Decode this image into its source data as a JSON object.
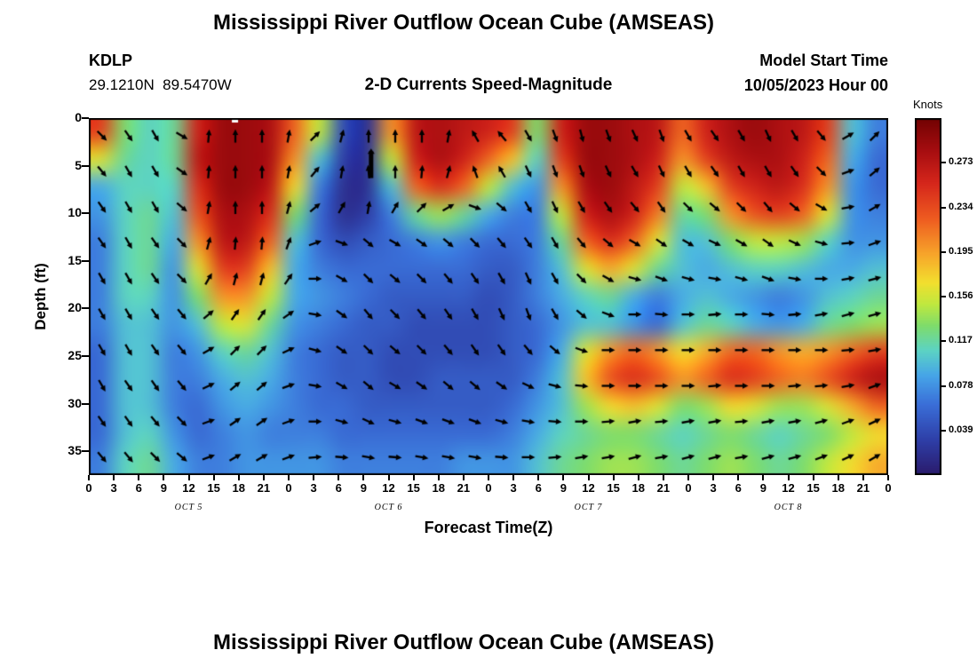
{
  "page": {
    "title": "Mississippi River Outflow Ocean Cube (AMSEAS)",
    "bottom_title": "Mississippi River Outflow Ocean Cube (AMSEAS)"
  },
  "header": {
    "station": "KDLP",
    "coordinates": "29.1210N  89.5470W",
    "subtitle": "2-D Currents Speed-Magnitude",
    "model_start_label": "Model Start Time",
    "model_start_value": "10/05/2023 Hour 00"
  },
  "chart_data": {
    "type": "heatmap",
    "title": "2-D Currents Speed-Magnitude",
    "xlabel": "Forecast Time(Z)",
    "ylabel": "Depth (ft)",
    "colorbar_label": "Knots",
    "x_hours_range": [
      0,
      96
    ],
    "x_tick_step_hours": 3,
    "x_tick_labels": [
      "0",
      "3",
      "6",
      "9",
      "12",
      "15",
      "18",
      "21",
      "0",
      "3",
      "6",
      "9",
      "12",
      "15",
      "18",
      "21",
      "0",
      "3",
      "6",
      "9",
      "12",
      "15",
      "18",
      "21",
      "0",
      "3",
      "6",
      "9",
      "12",
      "15",
      "18",
      "21",
      "0"
    ],
    "day_labels": [
      "OCT 5",
      "OCT 6",
      "OCT 7",
      "OCT 8"
    ],
    "day_center_hours": [
      12,
      36,
      60,
      84
    ],
    "y_ticks_ft": [
      0,
      5,
      10,
      15,
      20,
      25,
      30,
      35
    ],
    "depth_range_ft": [
      0,
      37.5
    ],
    "value_range_knots": [
      0,
      0.312
    ],
    "colorbar_ticks": [
      0.273,
      0.234,
      0.195,
      0.156,
      0.117,
      0.078,
      0.039
    ],
    "colormap_stops": [
      [
        0.0,
        "#2a1a6a"
      ],
      [
        0.1,
        "#2e3fa8"
      ],
      [
        0.2,
        "#3a6fd8"
      ],
      [
        0.28,
        "#46a5e8"
      ],
      [
        0.35,
        "#5cd3c4"
      ],
      [
        0.42,
        "#7fdc6a"
      ],
      [
        0.48,
        "#c0e83f"
      ],
      [
        0.54,
        "#f2df2e"
      ],
      [
        0.62,
        "#f7a52a"
      ],
      [
        0.72,
        "#ee5b20"
      ],
      [
        0.82,
        "#d5261b"
      ],
      [
        0.91,
        "#a60d10"
      ],
      [
        1.0,
        "#720202"
      ]
    ],
    "grid": {
      "depths_ft": [
        0,
        3,
        6,
        9,
        12,
        15,
        18,
        21,
        24,
        27,
        30,
        33,
        36
      ],
      "time_start_hours": 0,
      "time_step_hours": 3,
      "speed_knots": [
        [
          0.24,
          0.13,
          0.11,
          0.12,
          0.26,
          0.29,
          0.29,
          0.28,
          0.22,
          0.15,
          0.04,
          0.02,
          0.2,
          0.27,
          0.28,
          0.27,
          0.26,
          0.24,
          0.13,
          0.26,
          0.29,
          0.29,
          0.28,
          0.27,
          0.22,
          0.26,
          0.28,
          0.29,
          0.28,
          0.27,
          0.24,
          0.1,
          0.07
        ],
        [
          0.16,
          0.12,
          0.11,
          0.12,
          0.27,
          0.29,
          0.29,
          0.28,
          0.2,
          0.1,
          0.03,
          0.02,
          0.15,
          0.26,
          0.28,
          0.26,
          0.22,
          0.18,
          0.11,
          0.24,
          0.29,
          0.29,
          0.28,
          0.26,
          0.2,
          0.24,
          0.27,
          0.28,
          0.28,
          0.26,
          0.22,
          0.09,
          0.06
        ],
        [
          0.09,
          0.11,
          0.11,
          0.11,
          0.25,
          0.29,
          0.29,
          0.27,
          0.17,
          0.07,
          0.02,
          0.02,
          0.1,
          0.22,
          0.25,
          0.22,
          0.15,
          0.1,
          0.08,
          0.2,
          0.28,
          0.29,
          0.27,
          0.24,
          0.15,
          0.18,
          0.24,
          0.26,
          0.27,
          0.25,
          0.2,
          0.08,
          0.06
        ],
        [
          0.08,
          0.11,
          0.12,
          0.1,
          0.23,
          0.28,
          0.28,
          0.25,
          0.13,
          0.06,
          0.02,
          0.03,
          0.07,
          0.12,
          0.14,
          0.12,
          0.09,
          0.07,
          0.07,
          0.15,
          0.26,
          0.28,
          0.26,
          0.21,
          0.12,
          0.13,
          0.2,
          0.23,
          0.24,
          0.22,
          0.16,
          0.08,
          0.07
        ],
        [
          0.07,
          0.11,
          0.12,
          0.09,
          0.2,
          0.27,
          0.27,
          0.22,
          0.1,
          0.06,
          0.04,
          0.05,
          0.06,
          0.07,
          0.08,
          0.07,
          0.06,
          0.06,
          0.07,
          0.12,
          0.22,
          0.25,
          0.22,
          0.16,
          0.1,
          0.1,
          0.13,
          0.15,
          0.15,
          0.14,
          0.11,
          0.08,
          0.08
        ],
        [
          0.07,
          0.11,
          0.12,
          0.08,
          0.16,
          0.24,
          0.24,
          0.18,
          0.09,
          0.07,
          0.06,
          0.06,
          0.06,
          0.06,
          0.06,
          0.06,
          0.05,
          0.05,
          0.07,
          0.1,
          0.16,
          0.19,
          0.16,
          0.12,
          0.1,
          0.09,
          0.1,
          0.11,
          0.11,
          0.1,
          0.09,
          0.09,
          0.1
        ],
        [
          0.07,
          0.11,
          0.11,
          0.08,
          0.13,
          0.2,
          0.2,
          0.15,
          0.09,
          0.08,
          0.07,
          0.06,
          0.05,
          0.05,
          0.05,
          0.05,
          0.04,
          0.05,
          0.07,
          0.09,
          0.11,
          0.12,
          0.09,
          0.07,
          0.09,
          0.1,
          0.09,
          0.08,
          0.07,
          0.08,
          0.1,
          0.11,
          0.12
        ],
        [
          0.07,
          0.1,
          0.1,
          0.08,
          0.1,
          0.15,
          0.16,
          0.12,
          0.08,
          0.07,
          0.06,
          0.05,
          0.05,
          0.04,
          0.04,
          0.04,
          0.04,
          0.05,
          0.06,
          0.08,
          0.1,
          0.1,
          0.08,
          0.06,
          0.1,
          0.12,
          0.11,
          0.09,
          0.08,
          0.09,
          0.12,
          0.13,
          0.14
        ],
        [
          0.06,
          0.1,
          0.1,
          0.07,
          0.08,
          0.11,
          0.12,
          0.1,
          0.07,
          0.06,
          0.05,
          0.05,
          0.04,
          0.04,
          0.04,
          0.04,
          0.04,
          0.05,
          0.06,
          0.09,
          0.16,
          0.2,
          0.22,
          0.2,
          0.17,
          0.19,
          0.22,
          0.22,
          0.2,
          0.19,
          0.2,
          0.22,
          0.24
        ],
        [
          0.06,
          0.1,
          0.1,
          0.07,
          0.07,
          0.09,
          0.1,
          0.09,
          0.07,
          0.06,
          0.05,
          0.05,
          0.04,
          0.04,
          0.05,
          0.05,
          0.05,
          0.05,
          0.07,
          0.1,
          0.18,
          0.23,
          0.25,
          0.23,
          0.2,
          0.22,
          0.25,
          0.24,
          0.22,
          0.21,
          0.23,
          0.26,
          0.28
        ],
        [
          0.06,
          0.1,
          0.1,
          0.07,
          0.06,
          0.08,
          0.09,
          0.08,
          0.07,
          0.06,
          0.06,
          0.05,
          0.05,
          0.05,
          0.05,
          0.05,
          0.05,
          0.06,
          0.08,
          0.1,
          0.14,
          0.17,
          0.18,
          0.16,
          0.13,
          0.14,
          0.17,
          0.16,
          0.14,
          0.14,
          0.16,
          0.19,
          0.22
        ],
        [
          0.06,
          0.1,
          0.11,
          0.08,
          0.06,
          0.07,
          0.08,
          0.07,
          0.07,
          0.07,
          0.06,
          0.06,
          0.06,
          0.06,
          0.06,
          0.06,
          0.06,
          0.07,
          0.09,
          0.11,
          0.12,
          0.13,
          0.13,
          0.12,
          0.11,
          0.12,
          0.13,
          0.12,
          0.11,
          0.12,
          0.13,
          0.15,
          0.17
        ],
        [
          0.07,
          0.11,
          0.12,
          0.09,
          0.07,
          0.07,
          0.08,
          0.08,
          0.08,
          0.08,
          0.07,
          0.07,
          0.07,
          0.07,
          0.07,
          0.08,
          0.08,
          0.08,
          0.1,
          0.12,
          0.13,
          0.14,
          0.14,
          0.13,
          0.12,
          0.13,
          0.14,
          0.13,
          0.12,
          0.13,
          0.15,
          0.17,
          0.19
        ]
      ]
    },
    "arrows": {
      "description": "current direction vectors, degrees counterclockwise from east",
      "angles_deg_ccw_from_east": [
        [
          -45,
          -55,
          -60,
          -30,
          85,
          90,
          90,
          80,
          45,
          75,
          90,
          90,
          90,
          80,
          120,
          130,
          -60,
          -70,
          -75,
          -70,
          -65,
          -70,
          -60,
          -55,
          -60,
          -65,
          -60,
          -50,
          30,
          45
        ],
        [
          -50,
          -60,
          -60,
          -35,
          85,
          90,
          90,
          80,
          50,
          80,
          95,
          90,
          85,
          75,
          110,
          120,
          -65,
          -70,
          -70,
          -65,
          -60,
          -65,
          -60,
          -55,
          -60,
          -60,
          -55,
          -45,
          20,
          40
        ],
        [
          -55,
          -60,
          -60,
          -40,
          80,
          90,
          90,
          75,
          40,
          60,
          80,
          60,
          45,
          30,
          -20,
          -40,
          -60,
          -65,
          -60,
          -55,
          -50,
          -55,
          -45,
          -40,
          -45,
          -50,
          -40,
          -30,
          10,
          30
        ],
        [
          -55,
          -60,
          -55,
          -45,
          75,
          85,
          85,
          70,
          20,
          -20,
          -40,
          -30,
          -35,
          -40,
          -45,
          -50,
          -55,
          -60,
          -50,
          -40,
          -30,
          -35,
          -30,
          -25,
          -30,
          -35,
          -25,
          -15,
          5,
          20
        ],
        [
          -60,
          -60,
          -55,
          -45,
          60,
          75,
          75,
          55,
          0,
          -30,
          -45,
          -40,
          -45,
          -50,
          -55,
          -60,
          -65,
          -60,
          -45,
          -30,
          -15,
          -20,
          -15,
          -10,
          -15,
          -20,
          -10,
          0,
          10,
          15
        ],
        [
          -60,
          -60,
          -55,
          -50,
          40,
          55,
          55,
          35,
          -10,
          -35,
          -50,
          -45,
          -50,
          -55,
          -60,
          -65,
          -70,
          -60,
          -40,
          -20,
          0,
          -5,
          0,
          5,
          0,
          -5,
          5,
          10,
          15,
          15
        ],
        [
          -60,
          -60,
          -55,
          -50,
          30,
          45,
          45,
          25,
          -15,
          -35,
          -45,
          -40,
          -45,
          -50,
          -55,
          -55,
          -50,
          -40,
          -20,
          0,
          0,
          0,
          0,
          0,
          0,
          0,
          0,
          0,
          5,
          10
        ],
        [
          -60,
          -55,
          -55,
          -50,
          25,
          40,
          40,
          20,
          -10,
          -30,
          -40,
          -30,
          -35,
          -40,
          -40,
          -35,
          -25,
          -15,
          -5,
          0,
          0,
          0,
          0,
          5,
          0,
          0,
          5,
          5,
          10,
          20
        ],
        [
          -55,
          -55,
          -50,
          -45,
          20,
          35,
          35,
          20,
          0,
          -15,
          -25,
          -15,
          -20,
          -20,
          -20,
          -15,
          -10,
          -5,
          0,
          5,
          10,
          5,
          10,
          10,
          5,
          10,
          10,
          15,
          20,
          25
        ],
        [
          -50,
          -50,
          -45,
          -40,
          20,
          30,
          30,
          20,
          5,
          -5,
          -10,
          -5,
          -10,
          -10,
          -10,
          -5,
          0,
          5,
          10,
          10,
          15,
          10,
          15,
          15,
          10,
          15,
          15,
          20,
          25,
          30
        ]
      ]
    },
    "annotations": {
      "missing_data_notch": {
        "t_hours": 17.5
      },
      "long_vertical_arrow": {
        "t_hours": 33.9,
        "depth_top_ft": 3.2,
        "depth_bottom_ft": 6.3
      }
    }
  }
}
